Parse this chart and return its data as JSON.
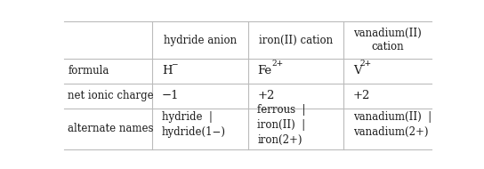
{
  "col_headers": [
    "hydride anion",
    "iron(II) cation",
    "vanadium(II)\ncation"
  ],
  "row_headers": [
    "formula",
    "net ionic charge",
    "alternate names"
  ],
  "net_charges": [
    "−1",
    "+2",
    "+2"
  ],
  "alt_names_col1": "hydride  |\nhydride(1−)",
  "alt_names_col2": "ferrous  |\niron(II)  |\niron(2+)",
  "alt_names_col3": "vanadium(II)  |\nvanadium(2+)",
  "background_color": "#ffffff",
  "line_color": "#bbbbbb",
  "text_color": "#1a1a1a",
  "font_size": 8.5
}
